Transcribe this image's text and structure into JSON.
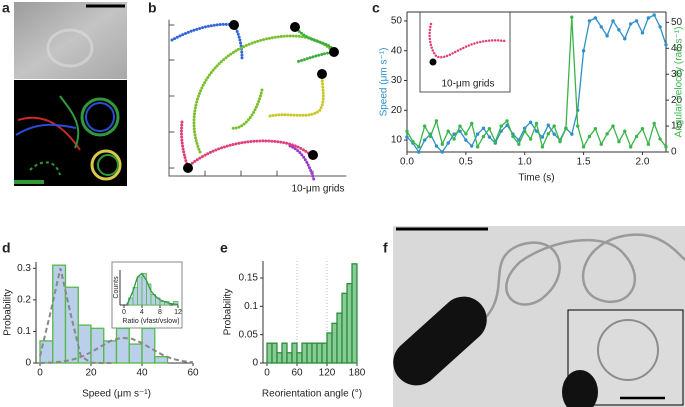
{
  "panel_labels": [
    "a",
    "b",
    "c",
    "d",
    "e",
    "f"
  ],
  "panel_b": {
    "grid_label": "10-μm grids"
  },
  "chart_data": [
    {
      "type": "line",
      "x": [
        0,
        0.05,
        0.1,
        0.15,
        0.2,
        0.25,
        0.3,
        0.35,
        0.4,
        0.45,
        0.5,
        0.55,
        0.6,
        0.65,
        0.7,
        0.75,
        0.8,
        0.85,
        0.9,
        0.95,
        1.0,
        1.05,
        1.1,
        1.15,
        1.2,
        1.25,
        1.3,
        1.35,
        1.4,
        1.45,
        1.5,
        1.55,
        1.6,
        1.65,
        1.7,
        1.75,
        1.8,
        1.85,
        1.9,
        1.95,
        2.0,
        2.05,
        2.1,
        2.15,
        2.2
      ],
      "series": [
        {
          "name": "Speed",
          "color": "#2f8fc8",
          "axis": "y",
          "values": [
            11,
            9,
            6,
            10,
            12,
            8,
            6,
            9,
            12,
            13,
            10,
            8,
            12,
            14,
            11,
            9,
            13,
            15,
            12,
            10,
            14,
            16,
            13,
            11,
            15,
            12,
            10,
            14,
            12,
            20,
            40,
            50,
            51,
            48,
            45,
            50,
            47,
            44,
            49,
            50,
            46,
            51,
            52,
            48,
            42
          ]
        },
        {
          "name": "Angular velocity",
          "color": "#3ab54a",
          "axis": "y2",
          "values": [
            8,
            4,
            2,
            10,
            6,
            12,
            3,
            8,
            5,
            10,
            7,
            11,
            2,
            6,
            9,
            4,
            10,
            12,
            6,
            3,
            8,
            5,
            11,
            2,
            7,
            10,
            4,
            9,
            52,
            10,
            2,
            6,
            9,
            3,
            7,
            10,
            4,
            8,
            2,
            6,
            9,
            3,
            11,
            5,
            2
          ]
        }
      ],
      "xlim": [
        0,
        2.2
      ],
      "xticks": [
        {
          "value": 0,
          "label": "0.0"
        },
        0.5,
        {
          "value": 1,
          "label": "1.0"
        },
        1.5,
        {
          "value": 2,
          "label": "2.0"
        }
      ],
      "ylim": [
        6,
        53
      ],
      "yticks": [
        10,
        20,
        30,
        40,
        50
      ],
      "y2lim": [
        0,
        54
      ],
      "y2ticks": [
        0,
        10,
        20,
        30,
        40,
        50
      ],
      "xlabel": "Time (s)",
      "ylabel": "Speed (μm s⁻¹)",
      "y2label": "Angular velocity (rad s⁻¹)",
      "inset_label": "10-μm grids"
    },
    {
      "type": "histogram",
      "bins": [
        0,
        5,
        10,
        15,
        20,
        25,
        30,
        35,
        40,
        45,
        50
      ],
      "values": [
        0.07,
        0.31,
        0.24,
        0.12,
        0.11,
        0.07,
        0.11,
        0.06,
        0.11,
        0.02
      ],
      "color": "#b9cfea",
      "edge_color": "#55b947",
      "fits": [
        {
          "color": "#888888",
          "dashed": true,
          "x": [
            0,
            4,
            8,
            12,
            16,
            20,
            24,
            28
          ],
          "values": [
            0.022,
            0.156,
            0.3,
            0.156,
            0.022,
            0.001,
            0,
            0
          ]
        },
        {
          "color": "#888888",
          "dashed": true,
          "x": [
            0,
            4,
            8,
            12,
            16,
            20,
            24,
            28,
            32,
            36,
            40,
            44,
            48,
            52,
            56,
            60
          ],
          "values": [
            0,
            0.001,
            0.004,
            0.009,
            0.019,
            0.034,
            0.053,
            0.071,
            0.08,
            0.077,
            0.063,
            0.044,
            0.026,
            0.013,
            0.006,
            0.002
          ]
        }
      ],
      "xlim": [
        0,
        60
      ],
      "xticks": [
        0,
        20,
        40,
        60
      ],
      "ylim": [
        0,
        0.32
      ],
      "yticks": [
        0,
        0.1,
        0.2,
        0.3
      ],
      "xlabel": "Speed (μm s⁻¹)",
      "ylabel": "Probability"
    },
    {
      "type": "histogram",
      "bins": [
        0,
        1,
        2,
        3,
        4,
        5,
        6,
        7,
        8,
        9,
        10,
        11,
        12
      ],
      "values": [
        0,
        2,
        5,
        8,
        9,
        6,
        3,
        2,
        1,
        1,
        0,
        1
      ],
      "color": "#b9cfea",
      "edge_color": "#55b947",
      "fits": [
        {
          "color": "#2e9a3e",
          "dashed": false,
          "x": [
            0.5,
            1,
            2,
            3,
            4,
            5,
            6,
            7,
            8,
            10,
            12
          ],
          "values": [
            0,
            1,
            4,
            8,
            9,
            7,
            4,
            2.5,
            1.5,
            0.5,
            0.1
          ]
        }
      ],
      "xlim": [
        0,
        12
      ],
      "xticks": [
        0,
        4,
        8,
        12
      ],
      "ylim": [
        0,
        10
      ],
      "xlabel": "Ratio (vfast/vslow)",
      "ylabel": "Counts"
    },
    {
      "type": "histogram",
      "bins": [
        0,
        10,
        20,
        30,
        40,
        50,
        60,
        70,
        80,
        90,
        100,
        110,
        120,
        130,
        140,
        150,
        160,
        170,
        180
      ],
      "values": [
        0.035,
        0.035,
        0.018,
        0.035,
        0.018,
        0.035,
        0.018,
        0.035,
        0.035,
        0.035,
        0.035,
        0.035,
        0.053,
        0.07,
        0.088,
        0.123,
        0.14,
        0.175
      ],
      "color": "#86cc93",
      "edge_color": "#2e8b3e",
      "reference_lines": [
        60,
        120
      ],
      "xlim": [
        0,
        180
      ],
      "xticks": [
        0,
        60,
        120,
        180
      ],
      "ylim": [
        0,
        0.18
      ],
      "yticks": [
        0,
        0.05,
        0.1,
        0.15
      ],
      "xlabel": "Reorientation angle (°)",
      "ylabel": "Probability"
    }
  ]
}
